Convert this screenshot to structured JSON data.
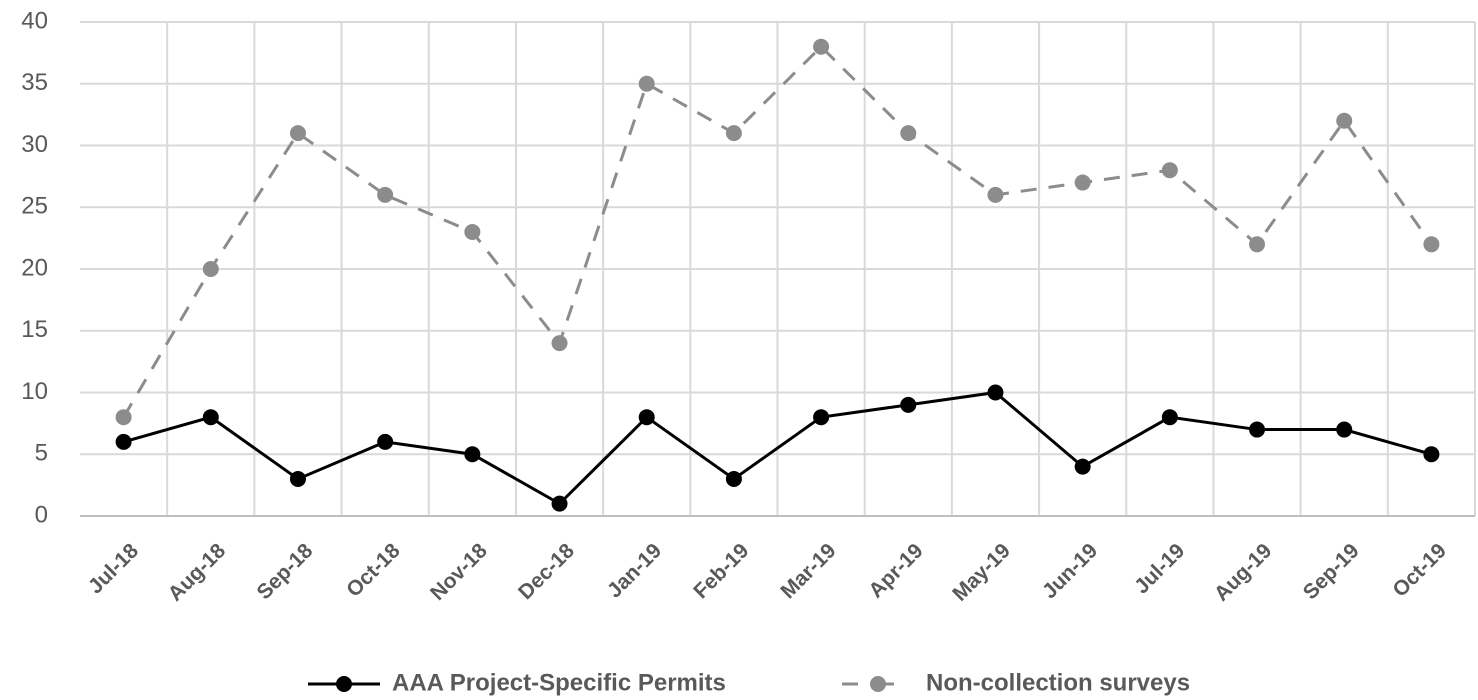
{
  "chart_data": {
    "type": "line",
    "categories": [
      "Jul-18",
      "Aug-18",
      "Sep-18",
      "Oct-18",
      "Nov-18",
      "Dec-18",
      "Jan-19",
      "Feb-19",
      "Mar-19",
      "Apr-19",
      "May-19",
      "Jun-19",
      "Jul-19",
      "Aug-19",
      "Sep-19",
      "Oct-19"
    ],
    "series": [
      {
        "name": "AAA Project-Specific Permits",
        "color": "#000000",
        "line_style": "solid",
        "values": [
          6,
          8,
          3,
          6,
          5,
          1,
          8,
          3,
          8,
          9,
          10,
          4,
          8,
          7,
          7,
          5
        ]
      },
      {
        "name": "Non-collection surveys",
        "color": "#8c8c8c",
        "line_style": "dashed",
        "values": [
          8,
          20,
          31,
          26,
          23,
          14,
          35,
          31,
          38,
          31,
          26,
          27,
          28,
          22,
          32,
          22
        ]
      }
    ],
    "ylim": [
      0,
      40
    ],
    "yticks": [
      0,
      5,
      10,
      15,
      20,
      25,
      30,
      35,
      40
    ],
    "grid": true,
    "legend": "bottom"
  }
}
